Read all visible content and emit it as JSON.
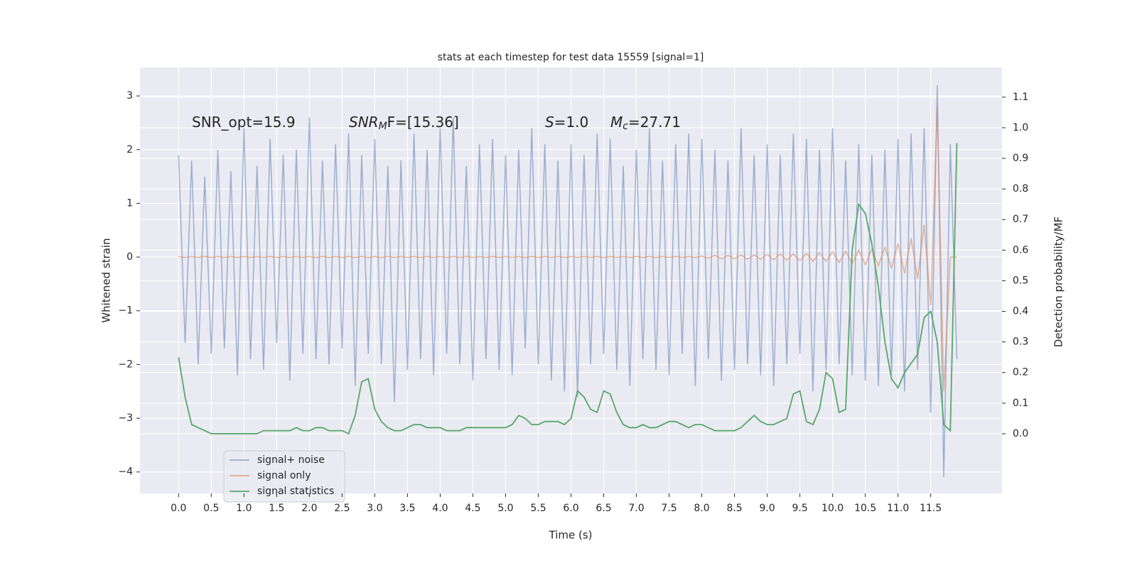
{
  "chart_data": {
    "type": "line",
    "title": "stats at each timestep for test data 15559 [signal=1]",
    "xlabel": "Time (s)",
    "ylabel": "Whitened strain",
    "y2label": "Detection probability/MF",
    "annotations": [
      {
        "text": "SNR_opt=15.9"
      },
      {
        "main": "SNR",
        "sub": "M",
        "rest": "F=[15.36]"
      },
      {
        "main": "S",
        "rest": "=1.0"
      },
      {
        "main": "M",
        "sub": "c",
        "rest": "=27.71"
      }
    ],
    "xlim": [
      -0.59,
      12.59
    ],
    "ylim": [
      -4.4,
      3.53
    ],
    "y2lim": [
      -0.195,
      1.197
    ],
    "xticks": [
      {
        "value": 0,
        "label": "0.0"
      },
      0.5,
      {
        "value": 1,
        "label": "1.0"
      },
      1.5,
      {
        "value": 2,
        "label": "2.0"
      },
      2.5,
      {
        "value": 3,
        "label": "3.0"
      },
      3.5,
      {
        "value": 4,
        "label": "4.0"
      },
      4.5,
      {
        "value": 5,
        "label": "5.0"
      },
      5.5,
      {
        "value": 6,
        "label": "6.0"
      },
      6.5,
      {
        "value": 7,
        "label": "7.0"
      },
      7.5,
      {
        "value": 8,
        "label": "8.0"
      },
      8.5,
      {
        "value": 9,
        "label": "9.0"
      },
      9.5,
      {
        "value": 10,
        "label": "10.0"
      },
      10.5,
      {
        "value": 11,
        "label": "11.0"
      },
      11.5
    ],
    "yticks": [
      {
        "value": -4,
        "label": "−4"
      },
      {
        "value": -3,
        "label": "−3"
      },
      {
        "value": -2,
        "label": "−2"
      },
      {
        "value": -1,
        "label": "−1"
      },
      0,
      1,
      2,
      3
    ],
    "y2ticks": [
      {
        "value": 0,
        "label": "0.0"
      },
      0.1,
      0.2,
      0.3,
      0.4,
      0.5,
      0.6,
      0.7,
      0.8,
      0.9,
      {
        "value": 1,
        "label": "1.0"
      },
      1.1
    ],
    "grid": true,
    "legend": "lower left",
    "x": [
      0.0,
      0.1,
      0.2,
      0.3,
      0.4,
      0.5,
      0.6,
      0.7,
      0.8,
      0.9,
      1.0,
      1.1,
      1.2,
      1.3,
      1.4,
      1.5,
      1.6,
      1.7,
      1.8,
      1.9,
      2.0,
      2.1,
      2.2,
      2.3,
      2.4,
      2.5,
      2.6,
      2.7,
      2.8,
      2.9,
      3.0,
      3.1,
      3.2,
      3.3,
      3.4,
      3.5,
      3.6,
      3.7,
      3.8,
      3.9,
      4.0,
      4.1,
      4.2,
      4.3,
      4.4,
      4.5,
      4.6,
      4.7,
      4.8,
      4.9,
      5.0,
      5.1,
      5.2,
      5.3,
      5.4,
      5.5,
      5.6,
      5.7,
      5.8,
      5.9,
      6.0,
      6.1,
      6.2,
      6.3,
      6.4,
      6.5,
      6.6,
      6.7,
      6.8,
      6.9,
      7.0,
      7.1,
      7.2,
      7.3,
      7.4,
      7.5,
      7.6,
      7.7,
      7.8,
      7.9,
      8.0,
      8.1,
      8.2,
      8.3,
      8.4,
      8.5,
      8.6,
      8.7,
      8.8,
      8.9,
      9.0,
      9.1,
      9.2,
      9.3,
      9.4,
      9.5,
      9.6,
      9.7,
      9.8,
      9.9,
      10.0,
      10.1,
      10.2,
      10.3,
      10.4,
      10.5,
      10.6,
      10.7,
      10.8,
      10.9,
      11.0,
      11.1,
      11.2,
      11.3,
      11.4,
      11.5,
      11.6,
      11.7,
      11.8,
      11.9
    ],
    "series": [
      {
        "name": "signal+ noise",
        "color": "#4c72b0",
        "opacity": 0.5,
        "values": [
          1.9,
          -1.6,
          1.8,
          -2.0,
          1.5,
          -1.8,
          2.0,
          -1.7,
          1.6,
          -2.2,
          2.4,
          -1.9,
          1.7,
          -2.1,
          2.2,
          -1.6,
          1.9,
          -2.3,
          2.0,
          -1.8,
          2.6,
          -1.9,
          1.8,
          -2.0,
          2.1,
          -1.7,
          2.3,
          -2.4,
          1.9,
          -1.8,
          2.2,
          -2.0,
          1.7,
          -2.7,
          1.8,
          -2.1,
          2.3,
          -1.9,
          2.0,
          -2.2,
          2.4,
          -1.8,
          2.6,
          -2.0,
          1.7,
          -2.3,
          2.1,
          -1.9,
          2.2,
          -2.1,
          1.9,
          -2.2,
          2.0,
          -1.7,
          2.4,
          -2.0,
          2.1,
          -2.3,
          1.8,
          -2.5,
          2.1,
          -2.6,
          1.9,
          -2.0,
          2.3,
          -1.8,
          2.2,
          -2.1,
          1.7,
          -2.4,
          2.0,
          -1.9,
          2.4,
          -2.1,
          1.8,
          -2.2,
          2.1,
          -1.8,
          2.3,
          -2.4,
          2.2,
          -1.9,
          2.0,
          -2.3,
          1.8,
          -2.1,
          2.4,
          -2.0,
          1.9,
          -2.2,
          2.1,
          -2.4,
          1.9,
          -2.0,
          2.3,
          -1.8,
          2.2,
          -2.5,
          2.0,
          -2.1,
          2.4,
          -2.0,
          1.8,
          -2.2,
          2.1,
          -2.3,
          1.9,
          -2.4,
          2.0,
          -2.2,
          2.2,
          -2.5,
          2.3,
          -2.1,
          2.4,
          -2.9,
          3.2,
          -4.1,
          2.1,
          -1.9
        ]
      },
      {
        "name": "signal only",
        "color": "#dd8452",
        "opacity": 0.6,
        "values": [
          0.01,
          -0.01,
          0.01,
          -0.01,
          0.01,
          -0.01,
          0.01,
          -0.01,
          0.01,
          -0.01,
          0.01,
          -0.01,
          0.01,
          -0.01,
          0.01,
          -0.01,
          0.01,
          -0.01,
          0.01,
          -0.01,
          0.01,
          -0.01,
          0.01,
          -0.01,
          0.01,
          -0.01,
          0.01,
          -0.01,
          0.01,
          -0.01,
          0.01,
          -0.01,
          0.01,
          -0.01,
          0.01,
          -0.01,
          0.01,
          -0.01,
          0.01,
          -0.01,
          0.01,
          -0.01,
          0.01,
          -0.01,
          0.01,
          -0.01,
          0.01,
          -0.01,
          0.01,
          -0.01,
          0.01,
          -0.01,
          0.01,
          -0.01,
          0.01,
          -0.01,
          0.01,
          -0.01,
          0.01,
          -0.01,
          0.01,
          -0.01,
          0.01,
          -0.01,
          0.01,
          -0.01,
          0.01,
          -0.01,
          0.01,
          -0.01,
          0.01,
          -0.01,
          0.01,
          -0.01,
          0.01,
          -0.01,
          0.01,
          -0.01,
          0.01,
          -0.01,
          0.02,
          -0.02,
          0.03,
          -0.03,
          0.03,
          -0.03,
          0.04,
          -0.04,
          0.04,
          -0.04,
          0.05,
          -0.05,
          0.06,
          -0.06,
          0.06,
          -0.07,
          0.07,
          -0.08,
          0.08,
          -0.08,
          0.1,
          -0.1,
          0.11,
          -0.12,
          0.13,
          -0.14,
          0.15,
          -0.16,
          0.18,
          -0.2,
          0.25,
          -0.3,
          0.35,
          -0.4,
          0.6,
          -0.9,
          2.8,
          -2.5,
          0,
          0
        ]
      },
      {
        "name": "signal statistics",
        "color": "#55a868",
        "axis": "y2",
        "values": [
          0.25,
          0.12,
          0.03,
          0.02,
          0.01,
          0.0,
          0.0,
          0.0,
          0.0,
          0.0,
          0.0,
          0.0,
          0.0,
          0.01,
          0.01,
          0.01,
          0.01,
          0.01,
          0.02,
          0.01,
          0.01,
          0.02,
          0.02,
          0.01,
          0.01,
          0.01,
          0.0,
          0.06,
          0.17,
          0.18,
          0.08,
          0.04,
          0.02,
          0.01,
          0.01,
          0.02,
          0.03,
          0.03,
          0.02,
          0.02,
          0.02,
          0.01,
          0.01,
          0.01,
          0.02,
          0.02,
          0.02,
          0.02,
          0.02,
          0.02,
          0.02,
          0.03,
          0.06,
          0.05,
          0.03,
          0.03,
          0.04,
          0.04,
          0.04,
          0.03,
          0.05,
          0.14,
          0.12,
          0.08,
          0.07,
          0.14,
          0.13,
          0.07,
          0.03,
          0.02,
          0.02,
          0.03,
          0.02,
          0.02,
          0.03,
          0.04,
          0.04,
          0.03,
          0.02,
          0.03,
          0.03,
          0.02,
          0.01,
          0.01,
          0.01,
          0.01,
          0.02,
          0.04,
          0.06,
          0.04,
          0.03,
          0.03,
          0.04,
          0.05,
          0.13,
          0.14,
          0.04,
          0.03,
          0.08,
          0.2,
          0.18,
          0.07,
          0.08,
          0.6,
          0.75,
          0.72,
          0.62,
          0.48,
          0.3,
          0.18,
          0.15,
          0.2,
          0.23,
          0.26,
          0.38,
          0.4,
          0.3,
          0.03,
          0.01,
          0.95
        ]
      }
    ]
  }
}
